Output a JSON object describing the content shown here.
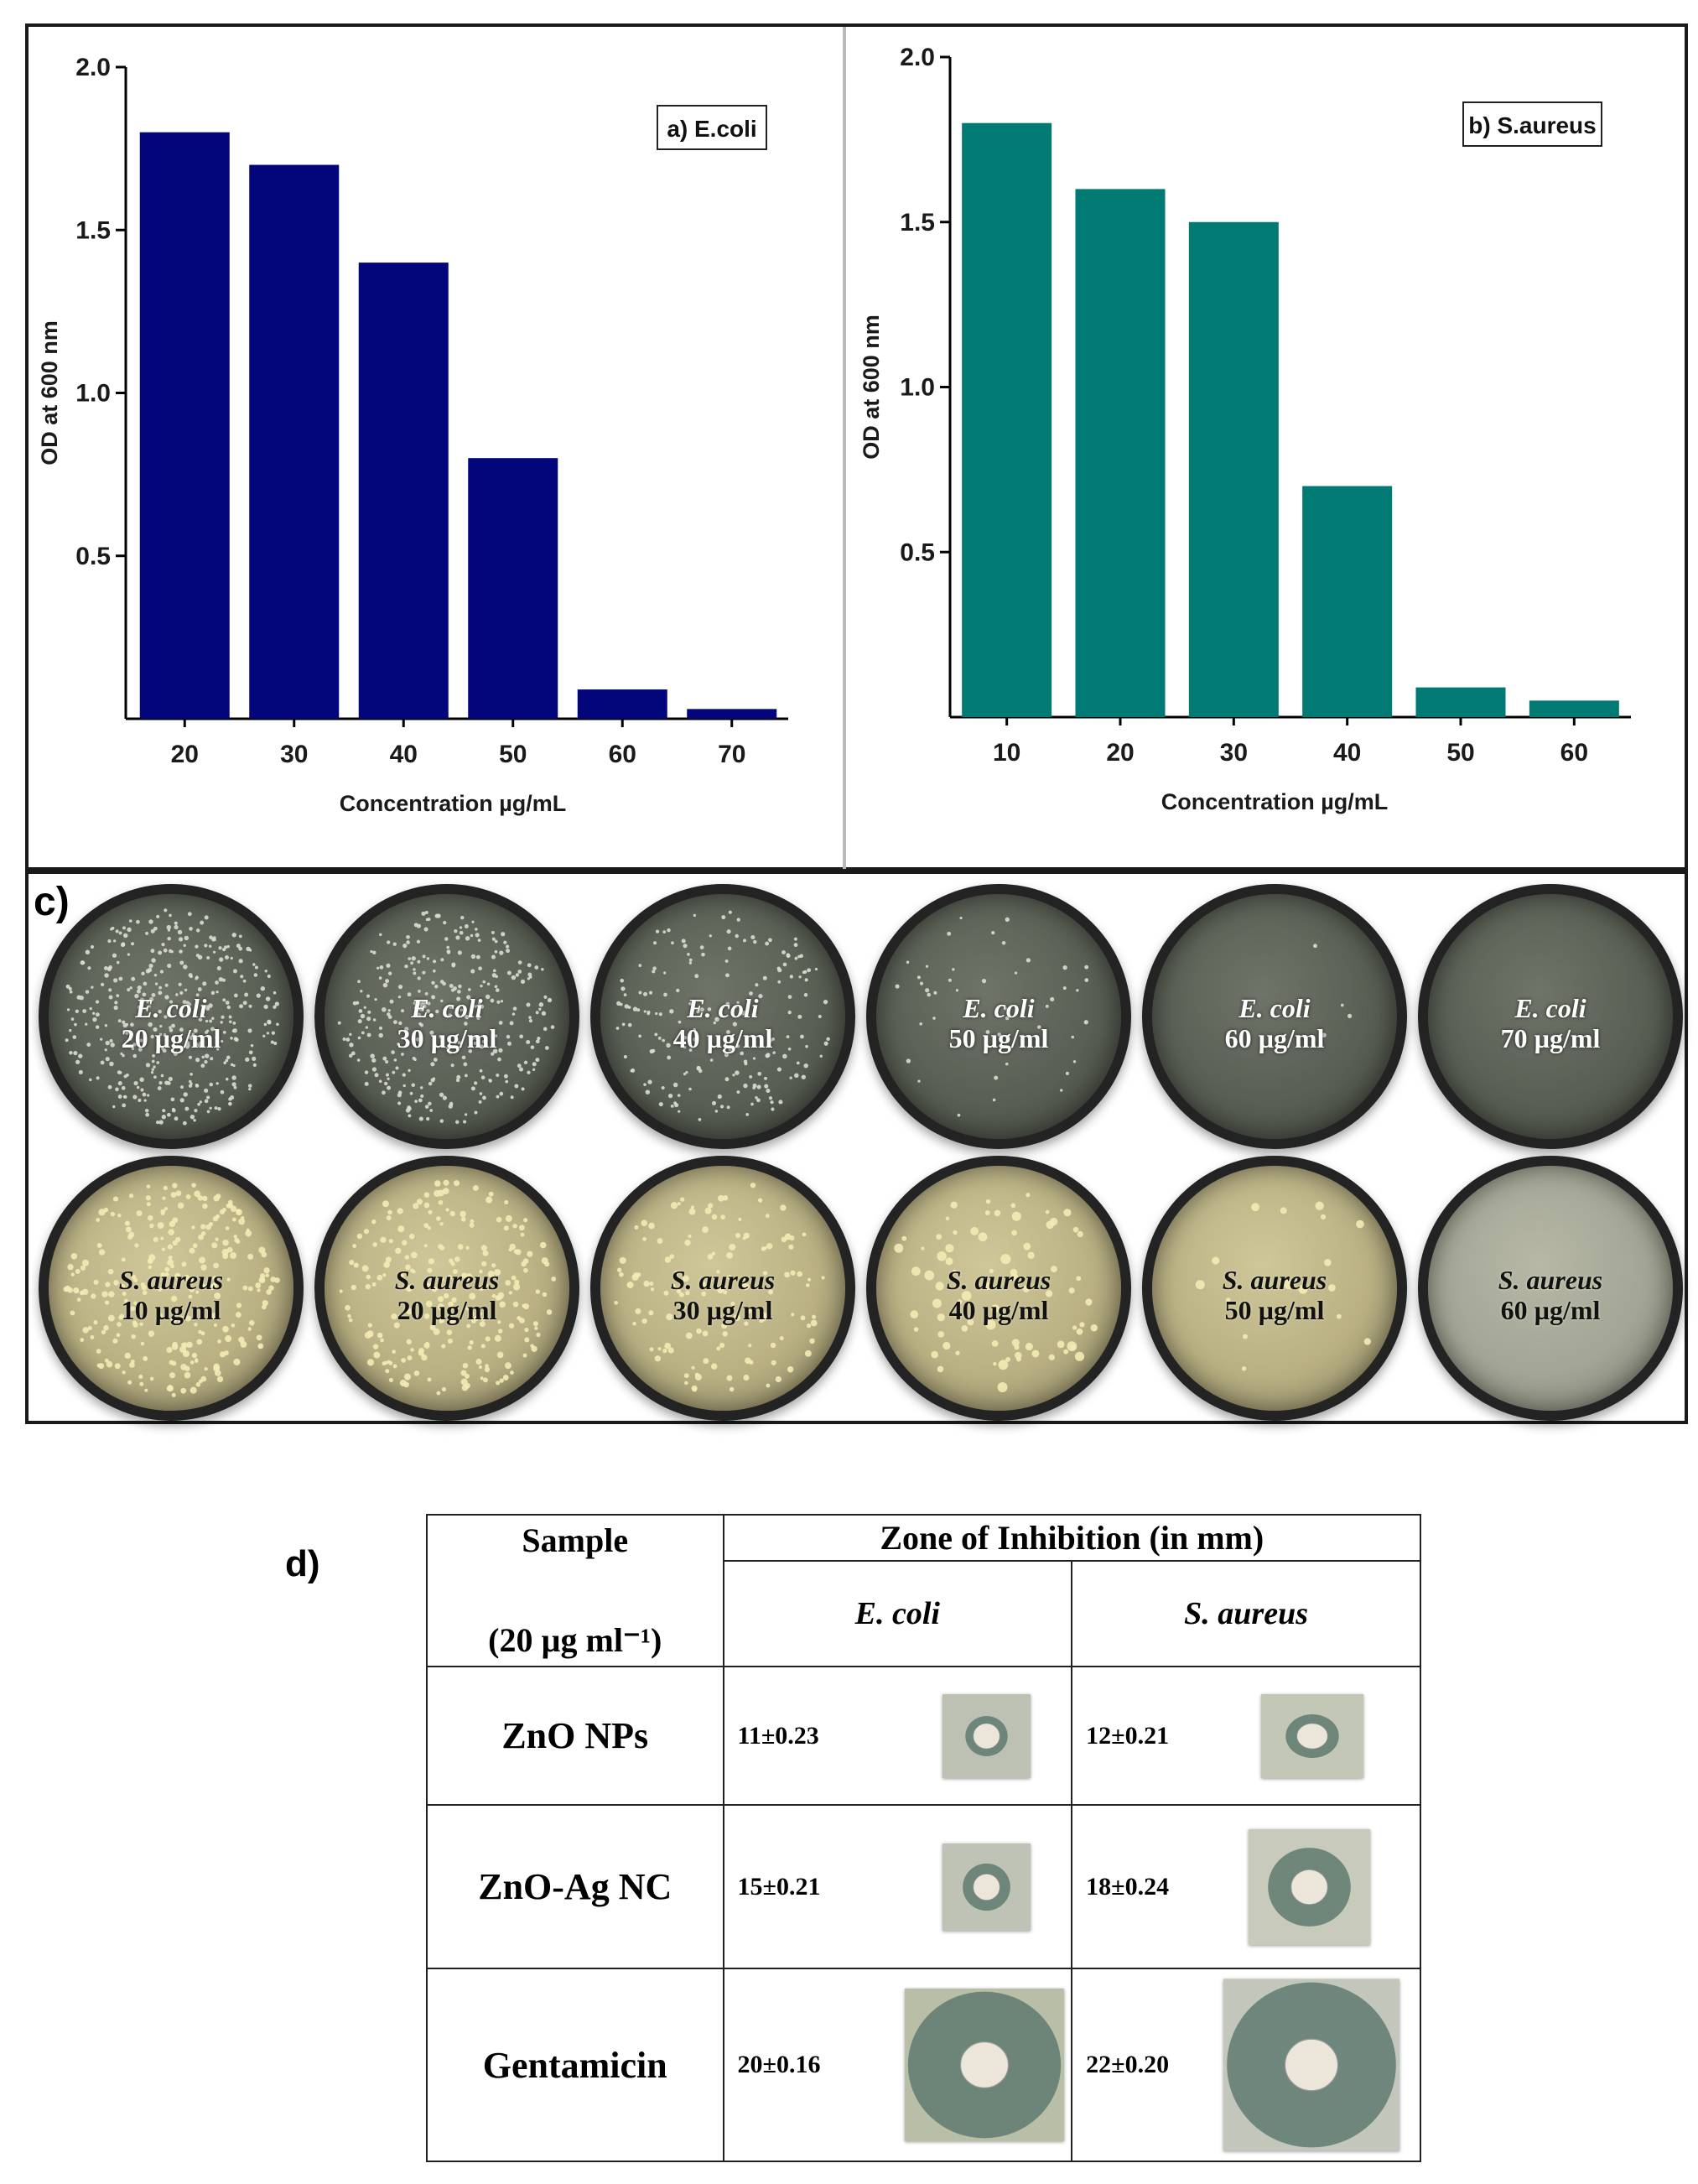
{
  "chart_data": [
    {
      "type": "bar",
      "legend": "a) E.coli",
      "categories": [
        "20",
        "30",
        "40",
        "50",
        "60",
        "70"
      ],
      "values": [
        1.8,
        1.7,
        1.4,
        0.8,
        0.09,
        0.03
      ],
      "xlabel": "Concentration  µg/mL",
      "ylabel": "OD at 600 nm",
      "ylim": [
        0,
        2.0
      ],
      "yticks": [
        "0.5",
        "1.0",
        "1.5",
        "2.0"
      ],
      "color": "#03067a"
    },
    {
      "type": "bar",
      "legend": "b) S.aureus",
      "categories": [
        "10",
        "20",
        "30",
        "40",
        "50",
        "60"
      ],
      "values": [
        1.8,
        1.6,
        1.5,
        0.7,
        0.09,
        0.05
      ],
      "xlabel": "Concentration  µg/mL",
      "ylabel": "OD at 600 nm",
      "ylim": [
        0,
        2.0
      ],
      "yticks": [
        "0.5",
        "1.0",
        "1.5",
        "2.0"
      ],
      "color": "#017a73"
    }
  ],
  "plates": {
    "panel_label": "c)",
    "ecoli": [
      {
        "species": "E. coli",
        "conc": "20 µg/ml",
        "colony_density": 1.0
      },
      {
        "species": "E. coli",
        "conc": "30 µg/ml",
        "colony_density": 0.8
      },
      {
        "species": "E. coli",
        "conc": "40 µg/ml",
        "colony_density": 0.5
      },
      {
        "species": "E. coli",
        "conc": "50 µg/ml",
        "colony_density": 0.12
      },
      {
        "species": "E. coli",
        "conc": "60 µg/ml",
        "colony_density": 0.01
      },
      {
        "species": "E. coli",
        "conc": "70 µg/ml",
        "colony_density": 0.0
      }
    ],
    "saureus": [
      {
        "species": "S. aureus",
        "conc": "10 µg/ml",
        "colony_density": 1.0
      },
      {
        "species": "S. aureus",
        "conc": "20 µg/ml",
        "colony_density": 0.85
      },
      {
        "species": "S. aureus",
        "conc": "30 µg/ml",
        "colony_density": 0.5
      },
      {
        "species": "S. aureus",
        "conc": "40 µg/ml",
        "colony_density": 0.3
      },
      {
        "species": "S. aureus",
        "conc": "50 µg/ml",
        "colony_density": 0.06
      },
      {
        "species": "S. aureus",
        "conc": "60 µg/ml",
        "colony_density": 0.0
      }
    ]
  },
  "table": {
    "panel_label": "d)",
    "sample_header": "Sample",
    "sample_unit": "(20 µg ml⁻¹)",
    "zone_header": "Zone of Inhibition (in mm)",
    "col_ecoli": "E. coli",
    "col_saureus": "S. aureus",
    "rows": [
      {
        "sample": "ZnO NPs",
        "ecoli": "11±0.23",
        "saureus": "12±0.21"
      },
      {
        "sample": "ZnO-Ag NC",
        "ecoli": "15±0.21",
        "saureus": "18±0.24"
      },
      {
        "sample": "Gentamicin",
        "ecoli": "20±0.16",
        "saureus": "22±0.20"
      }
    ]
  }
}
